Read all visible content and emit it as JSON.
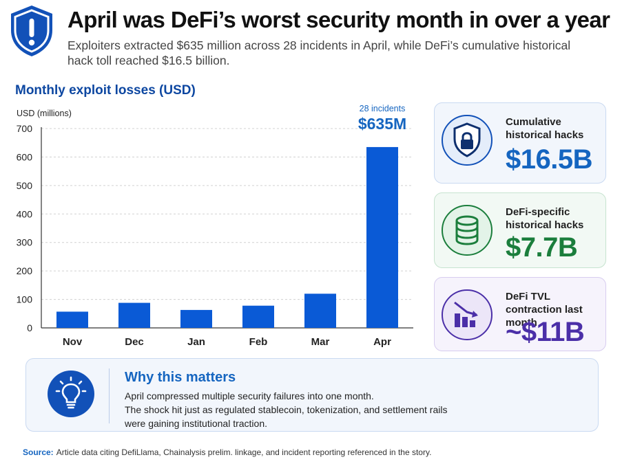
{
  "header": {
    "icon": "shield-alert-icon",
    "title": "April was DeFi’s worst security month in over a year",
    "subtitle": "Exploiters extracted $635 million across 28 incidents in April, while DeFi’s cumulative historical hack toll reached $16.5 billion."
  },
  "chart_data": {
    "type": "bar",
    "title": "Monthly exploit losses (USD)",
    "ylabel": "USD (millions)",
    "xlabel": "",
    "categories": [
      "Nov",
      "Dec",
      "Jan",
      "Feb",
      "Mar",
      "Apr"
    ],
    "values": [
      57,
      88,
      63,
      78,
      120,
      635
    ],
    "ylim": [
      0,
      700
    ],
    "yticks": [
      0,
      100,
      200,
      300,
      400,
      500,
      600,
      700
    ],
    "grid": true,
    "bar_color": "#0a5ad6",
    "annotation": {
      "category": "Apr",
      "note": "28 incidents",
      "value_label": "$635M"
    }
  },
  "cards": [
    {
      "icon": "shield-lock-icon",
      "label": "Cumulative historical hacks",
      "value": "$16.5B",
      "color": "#1565c0"
    },
    {
      "icon": "database-icon",
      "label": "DeFi-specific historical hacks",
      "value": "$7.7B",
      "color": "#1b7e3c"
    },
    {
      "icon": "declining-bar-chart-icon",
      "label": "DeFi TVL contraction last month",
      "value": "~$11B",
      "color": "#4b2fa8"
    }
  ],
  "why": {
    "icon": "lightbulb-icon",
    "title": "Why this matters",
    "lines": [
      "April compressed multiple security failures into one month.",
      "The shock hit just as regulated stablecoin, tokenization, and settlement rails",
      "were gaining institutional traction."
    ]
  },
  "source": {
    "label": "Source:",
    "text": "Article data citing DefiLlama, Chainalysis prelim. linkage, and incident reporting referenced in the story."
  }
}
